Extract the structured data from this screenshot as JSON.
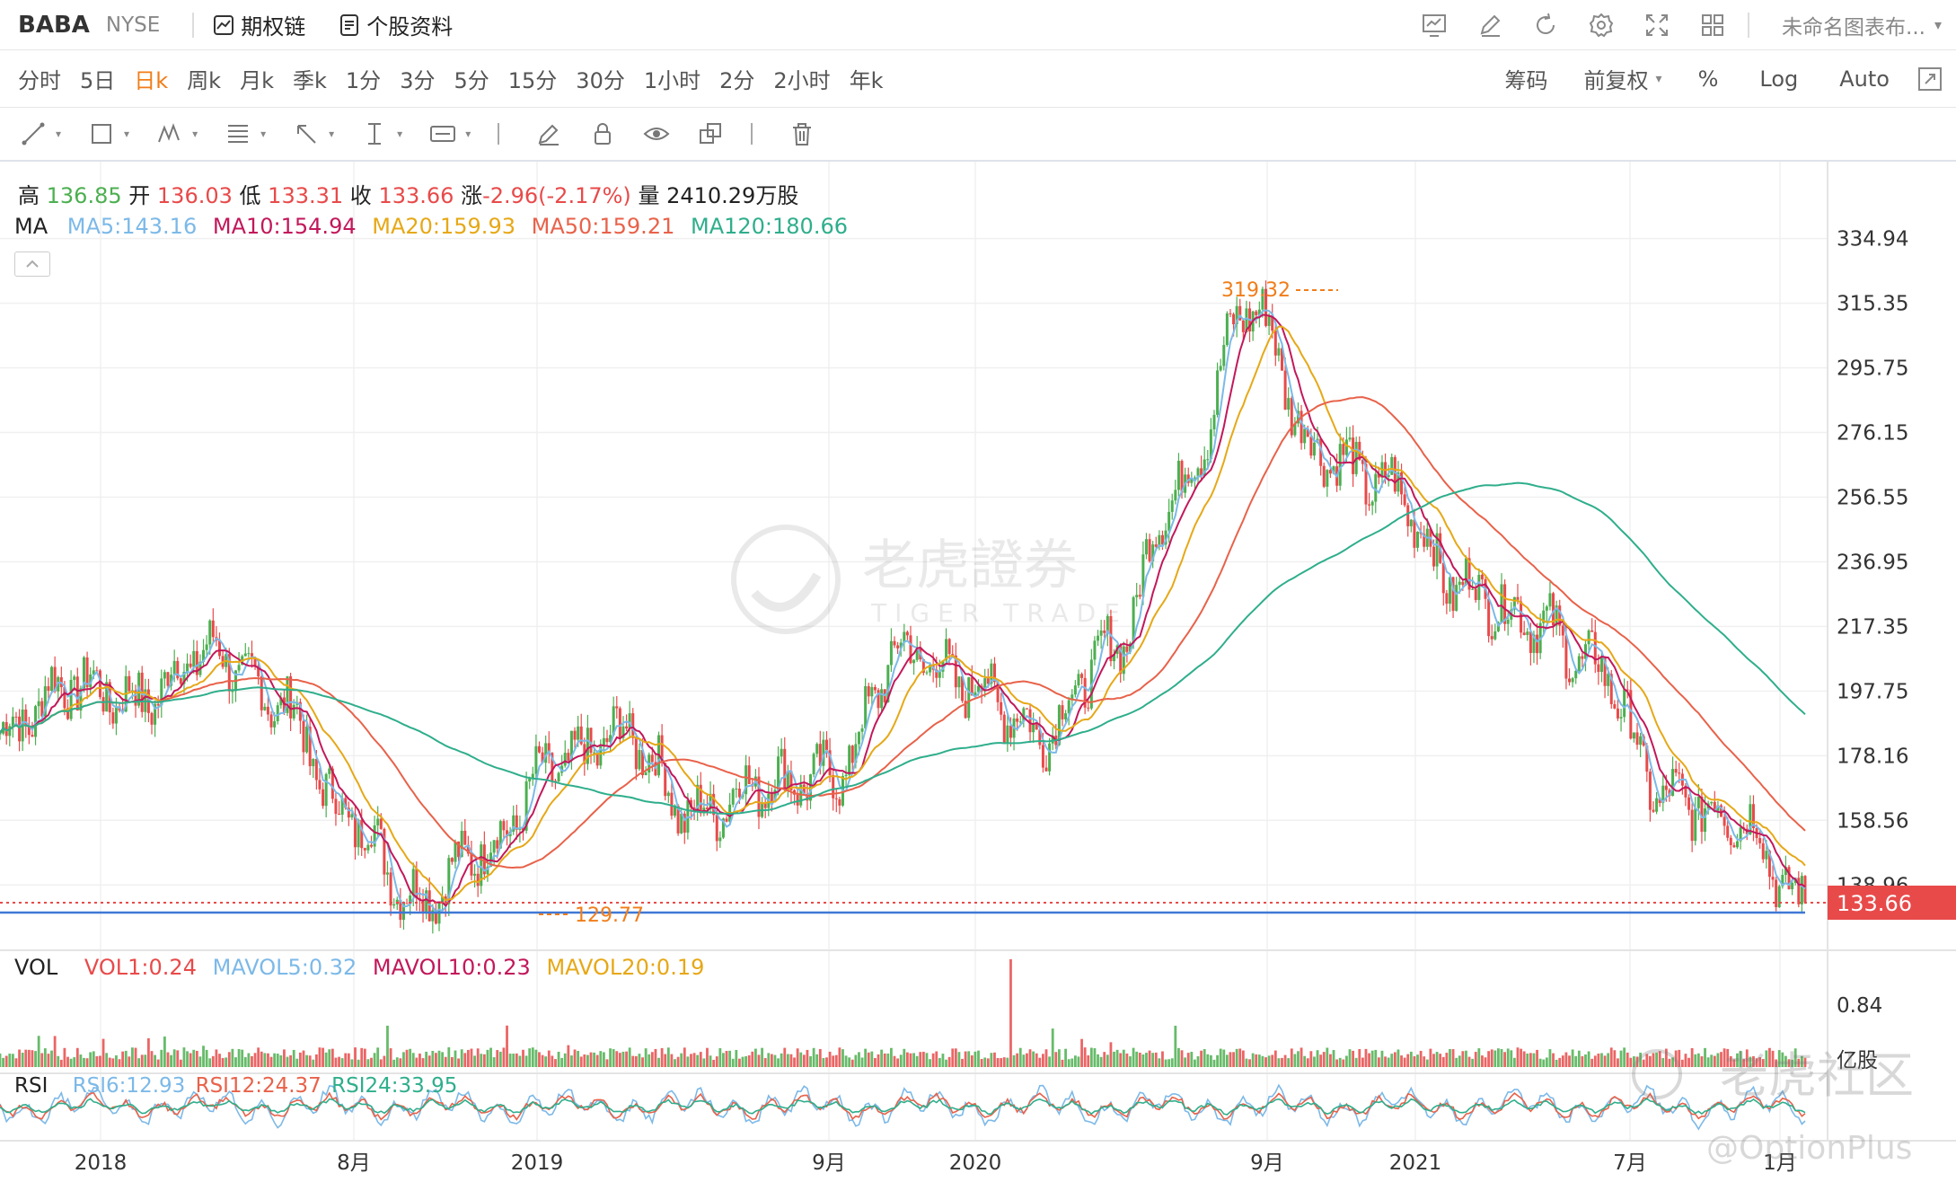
{
  "header": {
    "symbol": "BABA",
    "exchange": "NYSE",
    "options_chain": "期权链",
    "profile": "个股资料",
    "chart_name": "未命名图表布...",
    "chevron": "▾"
  },
  "timeframes": [
    "分时",
    "5日",
    "日k",
    "周k",
    "月k",
    "季k",
    "1分",
    "3分",
    "5分",
    "15分",
    "30分",
    "1小时",
    "2分",
    "2小时",
    "年k"
  ],
  "active_timeframe": "日k",
  "right_opts": {
    "chips": "筹码",
    "adjust": "前复权",
    "percent": "%",
    "log": "Log",
    "auto": "Auto"
  },
  "ohlc": {
    "high_label": "高",
    "high": "136.85",
    "open_label": "开",
    "open": "136.03",
    "low_label": "低",
    "low": "133.31",
    "close_label": "收",
    "close": "133.66",
    "change_label": "涨",
    "change": "-2.96(-2.17%)",
    "vol_label": "量",
    "volume": "2410.29万股"
  },
  "ma": {
    "label": "MA",
    "ma5": "MA5:143.16",
    "ma10": "MA10:154.94",
    "ma20": "MA20:159.93",
    "ma50": "MA50:159.21",
    "ma120": "MA120:180.66"
  },
  "vol": {
    "label": "VOL",
    "vol1": "VOL1:0.24",
    "mavol5": "MAVOL5:0.32",
    "mavol10": "MAVOL10:0.23",
    "mavol20": "MAVOL20:0.19",
    "tick_high": "0.84",
    "unit": "亿股"
  },
  "rsi": {
    "label": "RSI",
    "rsi6": "RSI6:12.93",
    "rsi12": "RSI12:24.37",
    "rsi24": "RSI24:33.95"
  },
  "price_ticks": [
    "334.94",
    "315.35",
    "295.75",
    "276.15",
    "256.55",
    "236.95",
    "217.35",
    "197.75",
    "178.16",
    "158.56",
    "138.96"
  ],
  "x_ticks": [
    "2018",
    "8月",
    "2019",
    "9月",
    "2020",
    "9月",
    "2021",
    "7月",
    "1月"
  ],
  "current_price": "133.66",
  "annotations": {
    "max": "319.32",
    "min": "129.77"
  },
  "watermark": {
    "brand": "老虎證券",
    "brand_en": "TIGER TRADE",
    "community": "老虎社区",
    "handle": "@OptionPlus"
  },
  "colors": {
    "up": "#4caf50",
    "down": "#e84a4a",
    "ma5": "#7cb9e8",
    "ma10": "#c2185b",
    "ma20": "#e6a817",
    "ma50": "#e8624a",
    "ma120": "#2fae8c",
    "price_tag": "#e84a4a",
    "accent": "#f07d1a"
  },
  "chart_data": {
    "type": "line",
    "title": "",
    "xlabel": "",
    "ylabel": "",
    "ylim": [
      120,
      340
    ],
    "x": [
      "2018-01",
      "2018-03",
      "2018-05",
      "2018-06",
      "2018-08",
      "2018-10",
      "2018-12",
      "2019-01",
      "2019-03",
      "2019-05",
      "2019-06",
      "2019-08",
      "2019-10",
      "2019-12",
      "2020-02",
      "2020-04",
      "2020-06",
      "2020-08",
      "2020-10",
      "2020-11",
      "2021-01",
      "2021-03",
      "2021-05",
      "2021-07",
      "2021-09",
      "2021-11",
      "2021-12"
    ],
    "series": [
      {
        "name": "BABA",
        "values": [
          185,
          200,
          195,
          210,
          195,
          160,
          135,
          150,
          175,
          185,
          160,
          170,
          172,
          210,
          200,
          185,
          210,
          260,
          315,
          270,
          260,
          230,
          220,
          205,
          165,
          160,
          133
        ]
      }
    ],
    "current": 133.66,
    "max": 319.32,
    "min": 129.77
  }
}
